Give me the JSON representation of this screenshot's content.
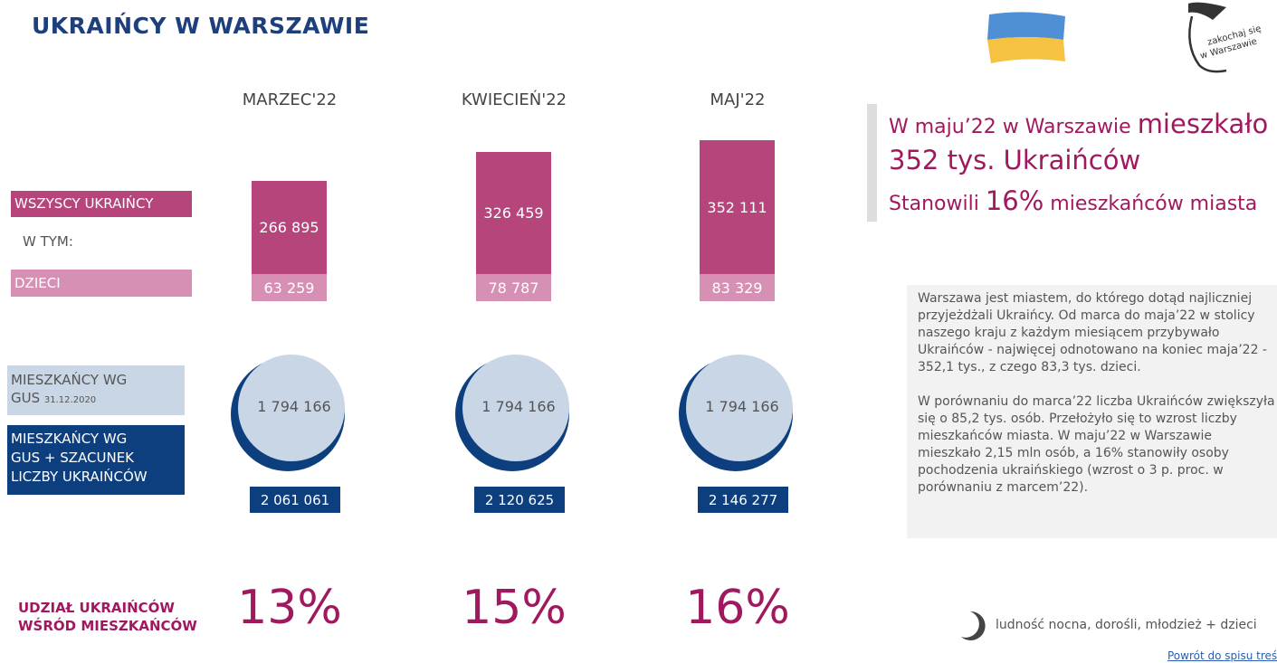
{
  "header": {
    "title": "UKRAIŃCY W WARSZAWIE",
    "logo_text": [
      "zakochaj się",
      "w Warszawie"
    ]
  },
  "legend_rows": {
    "all": "WSZYSCY UKRAIŃCY",
    "of_which": "W TYM:",
    "children": "DZIECI",
    "residents": [
      "MIESZKAŃCY WG",
      "GUS"
    ],
    "residents_date": "31.12.2020",
    "total": [
      "MIESZKAŃCY WG",
      "GUS + SZACUNEK",
      "LICZBY UKRAIŃCÓW"
    ],
    "share": [
      "UDZIAŁ  UKRAIŃCÓW",
      "WŚRÓD MIESZKAŃCÓW"
    ]
  },
  "months": [
    {
      "label": "MARZEC'22",
      "all": "266 895",
      "children": "63 259",
      "residents": "1 794 166",
      "total": "2 061 061",
      "share": "13%"
    },
    {
      "label": "KWIECIEŃ'22",
      "all": "326 459",
      "children": "78 787",
      "residents": "1 794 166",
      "total": "2 120 625",
      "share": "15%"
    },
    {
      "label": "MAJ'22",
      "all": "352 111",
      "children": "83 329",
      "residents": "1 794 166",
      "total": "2 146 277",
      "share": "16%"
    }
  ],
  "headline": {
    "line1_small": "W maju’22 w Warszawie ",
    "line1_big": "mieszkało",
    "line2": "352 tys. Ukraińców",
    "line3_a": "Stanowili ",
    "line3_big": "16%",
    "line3_b": " mieszkańców miasta"
  },
  "description": [
    "Warszawa jest miastem, do którego dotąd najliczniej przyjeżdżali Ukraińcy. Od marca do maja’22 w stolicy naszego kraju z każdym miesiącem przybywało Ukraińców - najwięcej odnotowano na koniec maja’22 - 352,1 tys., z czego 83,3 tys. dzieci.",
    "W porównaniu do marca’22 liczba Ukraińców zwiększyła się o 85,2 tys. osób. Przełożyło się to wzrost liczby mieszkańców miasta. W maju’22 w Warszawie mieszkało 2,15 mln osób, a 16% stanowiły osoby pochodzenia ukraińskiego (wzrost o 3 p. proc. w porównaniu z marcem’22)."
  ],
  "legend_note": "ludność nocna,  dorośli, młodzież + dzieci",
  "link": "Powrót do spisu treści"
}
